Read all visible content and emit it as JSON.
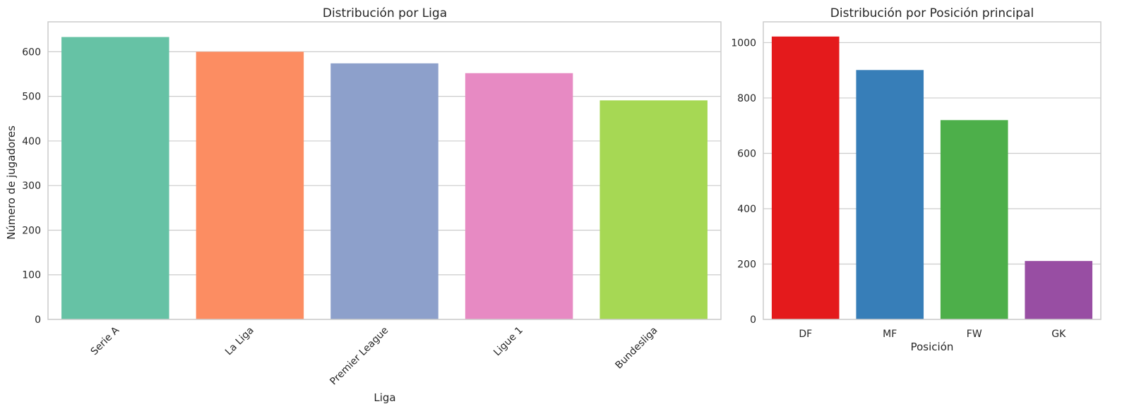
{
  "chart_data": [
    {
      "type": "bar",
      "title": "Distribución por Liga",
      "xlabel": "Liga",
      "ylabel": "Número de jugadores",
      "categories": [
        "Serie A",
        "La Liga",
        "Premier League",
        "Ligue 1",
        "Bundesliga"
      ],
      "values": [
        633,
        600,
        574,
        552,
        491
      ],
      "colors": [
        "#66c2a5",
        "#fc8d62",
        "#8da0cb",
        "#e78ac3",
        "#a6d854"
      ],
      "ylim": [
        0,
        667
      ],
      "yticks": [
        0,
        100,
        200,
        300,
        400,
        500,
        600
      ],
      "grid": "horizontal",
      "xtick_rotation": 45
    },
    {
      "type": "bar",
      "title": "Distribución por Posición principal",
      "xlabel": "Posición",
      "ylabel": "",
      "categories": [
        "DF",
        "MF",
        "FW",
        "GK"
      ],
      "values": [
        1022,
        901,
        720,
        211
      ],
      "colors": [
        "#e41a1c",
        "#377eb8",
        "#4daf4a",
        "#984ea3"
      ],
      "ylim": [
        0,
        1075
      ],
      "yticks": [
        0,
        200,
        400,
        600,
        800,
        1000
      ],
      "grid": "horizontal",
      "xtick_rotation": 0
    }
  ]
}
